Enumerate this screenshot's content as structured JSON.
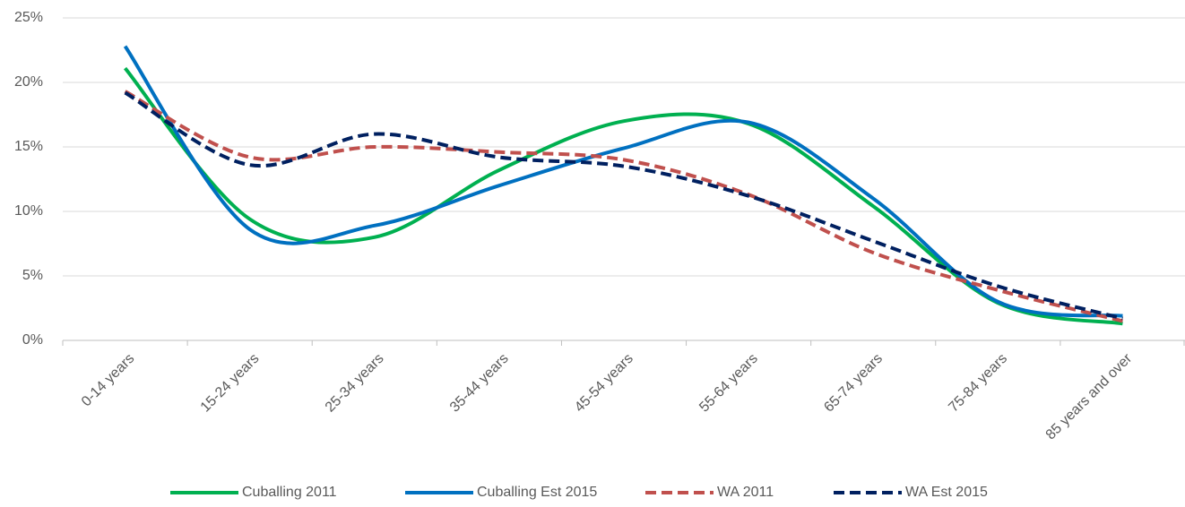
{
  "chart_data": {
    "type": "line",
    "categories": [
      "0-14 years",
      "15-24 years",
      "25-34 years",
      "35-44 years",
      "45-54 years",
      "55-64 years",
      "65-74 years",
      "75-84 years",
      "85 years and over"
    ],
    "series": [
      {
        "name": "Cuballing 2011",
        "color": "#00b050",
        "dashed": false,
        "values": [
          21.1,
          9.4,
          8.0,
          13.2,
          17.0,
          16.8,
          10.4,
          2.9,
          1.3
        ]
      },
      {
        "name": "Cuballing Est 2015",
        "color": "#0070c0",
        "dashed": false,
        "values": [
          22.8,
          8.6,
          8.9,
          12.0,
          14.9,
          16.9,
          11.0,
          3.0,
          1.9
        ]
      },
      {
        "name": "WA 2011",
        "color": "#c0504d",
        "dashed": true,
        "values": [
          19.3,
          14.2,
          15.0,
          14.6,
          14.0,
          11.3,
          6.8,
          3.9,
          1.5
        ]
      },
      {
        "name": "WA Est 2015",
        "color": "#002060",
        "dashed": true,
        "values": [
          19.2,
          13.6,
          16.0,
          14.2,
          13.5,
          11.2,
          7.7,
          4.2,
          1.7
        ]
      }
    ],
    "ylim": [
      0,
      25
    ],
    "yticks": [
      {
        "value": 0,
        "label": "0%"
      },
      {
        "value": 5,
        "label": "5%"
      },
      {
        "value": 10,
        "label": "10%"
      },
      {
        "value": 15,
        "label": "15%"
      },
      {
        "value": 20,
        "label": "20%"
      },
      {
        "value": 25,
        "label": "25%"
      }
    ],
    "grid": true,
    "legend": "bottom"
  }
}
